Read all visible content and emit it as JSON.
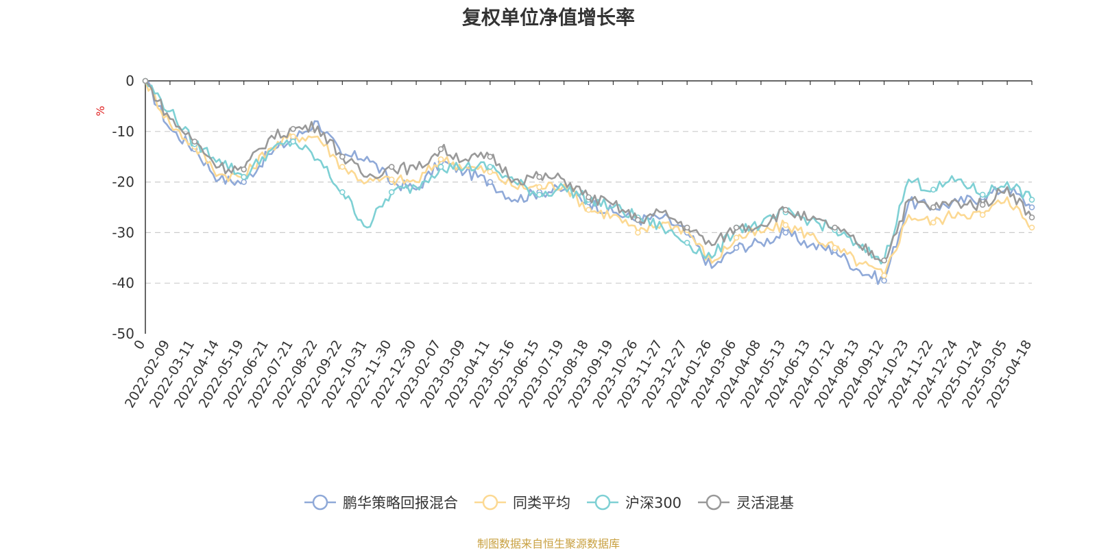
{
  "chart_data": {
    "type": "line",
    "title": "复权单位净值增长率",
    "ylabel": "%",
    "ylim": [
      -50,
      0
    ],
    "yticks": [
      0,
      -10,
      -20,
      -30,
      -40,
      -50
    ],
    "grid": true,
    "legend_position": "bottom-center",
    "source_note": "制图数据来自恒生聚源数据库",
    "x_tick_labels": [
      "0",
      "2022-02-09",
      "2022-03-11",
      "2022-04-14",
      "2022-05-19",
      "2022-06-21",
      "2022-07-21",
      "2022-08-22",
      "2022-09-22",
      "2022-10-31",
      "2022-11-30",
      "2022-12-30",
      "2023-02-07",
      "2023-03-09",
      "2023-04-11",
      "2023-05-16",
      "2023-06-15",
      "2023-07-19",
      "2023-08-18",
      "2023-09-19",
      "2023-10-26",
      "2023-11-27",
      "2023-12-27",
      "2024-01-26",
      "2024-03-06",
      "2024-04-08",
      "2024-05-13",
      "2024-06-13",
      "2024-07-12",
      "2024-08-13",
      "2024-09-12",
      "2024-10-23",
      "2024-11-22",
      "2024-12-24",
      "2025-01-24",
      "2025-03-05",
      "2025-04-18"
    ],
    "x": [
      "0",
      "2022-02-09",
      "2022-03-11",
      "2022-04-14",
      "2022-05-19",
      "2022-06-21",
      "2022-07-21",
      "2022-08-22",
      "2022-09-22",
      "2022-10-31",
      "2022-11-30",
      "2022-12-30",
      "2023-02-07",
      "2023-03-09",
      "2023-04-11",
      "2023-05-16",
      "2023-06-15",
      "2023-07-19",
      "2023-08-18",
      "2023-09-19",
      "2023-10-26",
      "2023-11-27",
      "2023-12-27",
      "2024-01-26",
      "2024-03-06",
      "2024-04-08",
      "2024-05-13",
      "2024-06-13",
      "2024-07-12",
      "2024-08-13",
      "2024-09-12",
      "2024-10-23",
      "2024-11-22",
      "2024-12-24",
      "2025-01-24",
      "2025-03-05",
      "2025-04-18"
    ],
    "series": [
      {
        "name": "鹏华策略回报混合",
        "color": "#8fa9d8",
        "values": [
          0,
          -9.5,
          -13.5,
          -19.5,
          -20,
          -14.5,
          -11.5,
          -8,
          -15,
          -15,
          -20,
          -21.5,
          -16,
          -18,
          -20,
          -23.5,
          -22,
          -21.5,
          -24,
          -26,
          -27.5,
          -27,
          -30,
          -37,
          -33,
          -32,
          -30,
          -32.5,
          -33.5,
          -37.5,
          -39.5,
          -24,
          -25,
          -24,
          -23,
          -21,
          -25
        ]
      },
      {
        "name": "同类平均",
        "color": "#fcd993",
        "values": [
          0,
          -8.5,
          -13,
          -18.5,
          -19,
          -13.5,
          -11,
          -11,
          -17,
          -20,
          -19.5,
          -20,
          -15.5,
          -17,
          -18,
          -21,
          -21,
          -20.5,
          -25.5,
          -26.5,
          -30,
          -28,
          -29.5,
          -36,
          -31,
          -30,
          -28.5,
          -30.5,
          -33,
          -36,
          -38.5,
          -26.5,
          -28,
          -26,
          -26.5,
          -23,
          -29
        ]
      },
      {
        "name": "沪深300",
        "color": "#7ed0d4",
        "values": [
          0,
          -6,
          -12.5,
          -15.5,
          -19,
          -14,
          -12,
          -15.5,
          -22,
          -29,
          -22,
          -21,
          -17,
          -17,
          -17,
          -20,
          -22.5,
          -21,
          -23.5,
          -25,
          -27,
          -29,
          -32,
          -35,
          -29,
          -28.5,
          -26,
          -27.5,
          -29.5,
          -33,
          -35.5,
          -19.5,
          -21.5,
          -19.5,
          -22.5,
          -20,
          -23.5
        ]
      },
      {
        "name": "灵活混基",
        "color": "#999999",
        "values": [
          0,
          -7.5,
          -12,
          -17,
          -17.5,
          -11.5,
          -9.5,
          -9,
          -15,
          -19,
          -17,
          -17.5,
          -13.5,
          -15.5,
          -15,
          -19.5,
          -19,
          -19.5,
          -23,
          -24.5,
          -27.5,
          -26,
          -29,
          -32.5,
          -29,
          -28.5,
          -25.5,
          -27.5,
          -29,
          -32.5,
          -35.5,
          -23.5,
          -25,
          -24,
          -24.5,
          -21,
          -27
        ]
      }
    ]
  }
}
